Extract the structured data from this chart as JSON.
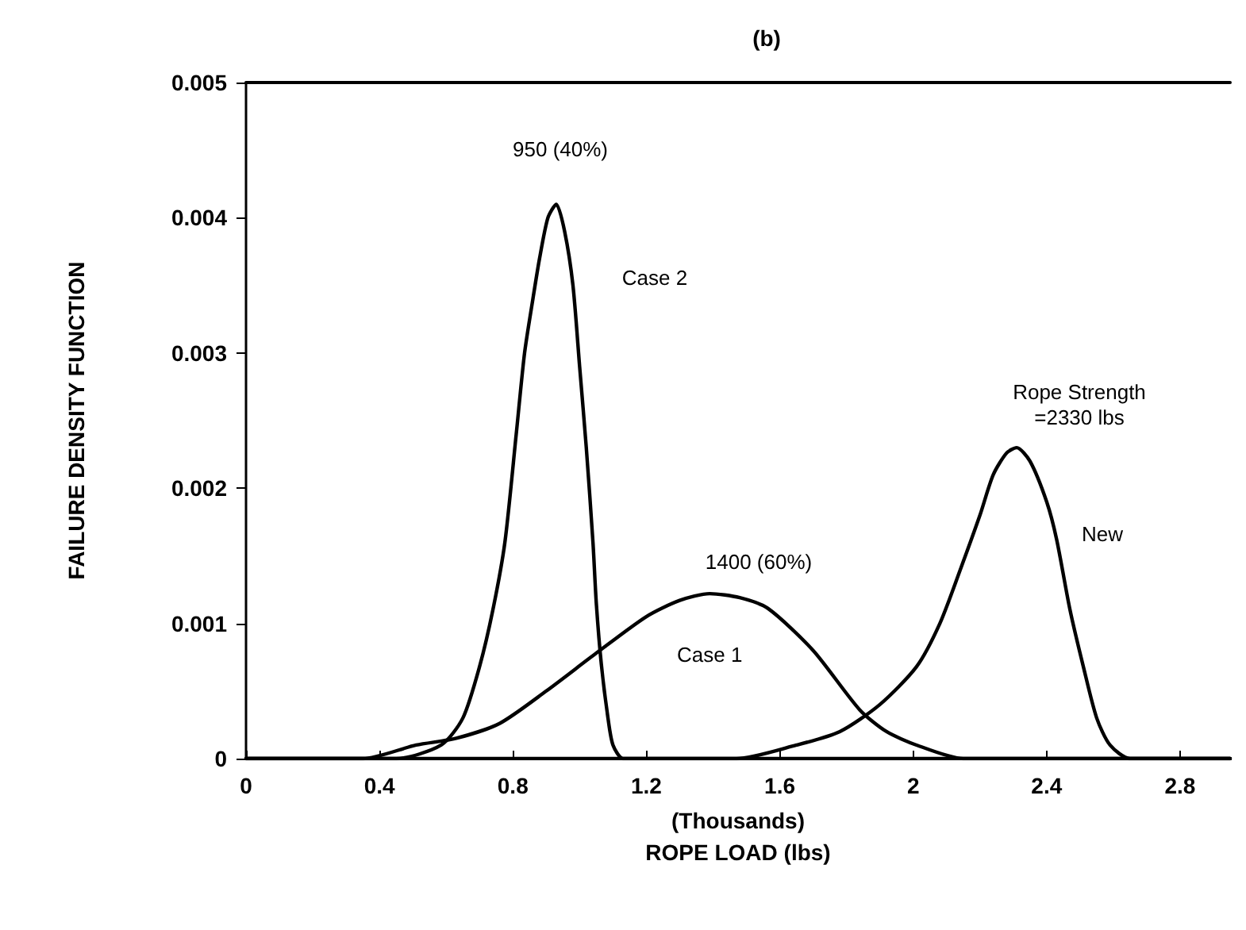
{
  "chart_data": {
    "type": "line",
    "title": "(b)",
    "xlabel": "(Thousands)\nROPE LOAD (lbs)",
    "ylabel": "FAILURE DENSITY FUNCTION",
    "xlim": [
      0,
      2.95
    ],
    "xticks": [
      0,
      0.4,
      0.8,
      1.2,
      1.6,
      2,
      2.4,
      2.8
    ],
    "ylim": [
      0,
      0.005
    ],
    "yticks": [
      0,
      0.001,
      0.002,
      0.003,
      0.004,
      0.005
    ],
    "grid": false,
    "legend": false,
    "marker": "none",
    "line_style": "solid",
    "series": [
      {
        "name": "Case 2",
        "color": "#000000",
        "x": [
          0,
          0.45,
          0.585,
          0.65,
          0.7,
          0.74,
          0.776,
          0.81,
          0.835,
          0.86,
          0.88,
          0.905,
          0.93,
          0.955,
          0.98,
          1.0,
          1.02,
          1.04,
          1.05,
          1.065,
          1.085,
          1.1,
          1.13,
          1.2,
          2.95
        ],
        "values": [
          0,
          0,
          0.0001,
          0.0003,
          0.00068,
          0.0011,
          0.0016,
          0.0024,
          0.003,
          0.0034,
          0.0037,
          0.004,
          0.0041,
          0.0039,
          0.0035,
          0.0029,
          0.0023,
          0.0016,
          0.00115,
          0.0007,
          0.0003,
          0.0001,
          0,
          0,
          0
        ]
      },
      {
        "name": "Case 1",
        "color": "#000000",
        "x": [
          0,
          0.35,
          0.51,
          0.63,
          0.76,
          0.9,
          1.05,
          1.2,
          1.3,
          1.39,
          1.48,
          1.565,
          1.7,
          1.84,
          1.92,
          2.01,
          2.15,
          2.35,
          2.95
        ],
        "values": [
          0,
          0,
          0.0001,
          0.00015,
          0.00026,
          0.0005,
          0.00078,
          0.00105,
          0.00117,
          0.00122,
          0.00119,
          0.00111,
          0.0008,
          0.00036,
          0.0002,
          0.0001,
          0,
          0,
          0
        ]
      },
      {
        "name": "New",
        "color": "#000000",
        "x": [
          0,
          1.0,
          1.47,
          1.65,
          1.78,
          1.9,
          2.01,
          2.08,
          2.14,
          2.2,
          2.24,
          2.28,
          2.31,
          2.35,
          2.4,
          2.43,
          2.47,
          2.51,
          2.55,
          2.59,
          2.65,
          2.95
        ],
        "values": [
          0,
          0,
          0,
          0.0001,
          0.0002,
          0.0004,
          0.00068,
          0.001,
          0.00139,
          0.0018,
          0.0021,
          0.00226,
          0.0023,
          0.0022,
          0.0019,
          0.00162,
          0.0011,
          0.00068,
          0.0003,
          0.0001,
          0,
          0
        ]
      }
    ],
    "annotations": [
      "950 (40%)",
      "1400 (60%)",
      "Rope Strength\n=2330 lbs"
    ]
  }
}
